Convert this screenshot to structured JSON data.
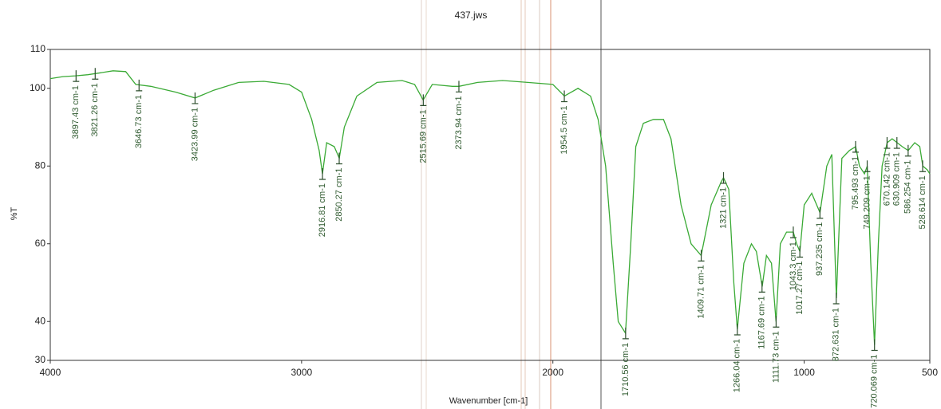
{
  "chart_data": {
    "type": "line",
    "title": "437.jws",
    "x_label": "Wavenumber [cm-1]",
    "y_label": "%T",
    "xlim": [
      4000,
      500
    ],
    "ylim": [
      30,
      110
    ],
    "xticks": [
      4000,
      3000,
      2000,
      1000,
      500
    ],
    "yticks": [
      30,
      40,
      60,
      80,
      100,
      110
    ],
    "series": [
      {
        "color": "#3aaa35",
        "x": [
          4000,
          3950,
          3900,
          3850,
          3800,
          3750,
          3700,
          3660,
          3600,
          3500,
          3424,
          3350,
          3250,
          3150,
          3050,
          3000,
          2960,
          2930,
          2917,
          2900,
          2870,
          2850,
          2830,
          2780,
          2700,
          2600,
          2550,
          2516,
          2480,
          2400,
          2374,
          2300,
          2200,
          2100,
          2000,
          1954,
          1900,
          1850,
          1820,
          1790,
          1760,
          1740,
          1711,
          1690,
          1670,
          1640,
          1600,
          1560,
          1530,
          1490,
          1450,
          1410,
          1370,
          1330,
          1321,
          1300,
          1280,
          1266,
          1240,
          1210,
          1190,
          1167,
          1150,
          1130,
          1112,
          1095,
          1070,
          1043,
          1030,
          1017,
          1000,
          970,
          937,
          910,
          890,
          872,
          850,
          820,
          795,
          780,
          760,
          749,
          735,
          720,
          705,
          690,
          670,
          650,
          630,
          610,
          586,
          560,
          540,
          528,
          510,
          500
        ],
        "values": [
          102.5,
          103,
          103.2,
          103.5,
          104,
          104.5,
          104.3,
          101,
          100.5,
          99,
          97.5,
          99.5,
          101.5,
          101.8,
          101,
          99,
          92,
          84,
          78,
          86,
          85,
          82,
          90,
          98,
          101.5,
          102,
          101,
          97,
          101,
          100.5,
          100.5,
          101.5,
          102,
          101.5,
          101,
          98,
          100,
          98,
          92,
          80,
          55,
          40,
          37,
          60,
          85,
          91,
          92,
          92,
          87,
          70,
          60,
          57,
          70,
          76,
          77,
          74,
          50,
          38,
          55,
          60,
          58,
          49,
          57,
          55,
          40,
          60,
          63,
          63,
          60,
          58,
          70,
          73,
          68,
          80,
          83,
          46,
          82,
          84,
          85,
          80,
          78,
          80,
          55,
          34,
          60,
          80,
          86,
          87,
          86,
          85,
          84,
          86,
          85,
          80,
          79,
          78
        ]
      }
    ],
    "peaks": [
      {
        "label": "3897.43 cm-1",
        "x": 3897.43,
        "y": 103.2
      },
      {
        "label": "3821.26 cm-1",
        "x": 3821.26,
        "y": 103.8
      },
      {
        "label": "3646.73 cm-1",
        "x": 3646.73,
        "y": 100.8
      },
      {
        "label": "3423.99 cm-1",
        "x": 3423.99,
        "y": 97.5
      },
      {
        "label": "2916.81 cm-1",
        "x": 2916.81,
        "y": 78
      },
      {
        "label": "2850.27 cm-1",
        "x": 2850.27,
        "y": 82
      },
      {
        "label": "2515.69 cm-1",
        "x": 2515.69,
        "y": 97
      },
      {
        "label": "2373.94 cm-1",
        "x": 2373.94,
        "y": 100.5
      },
      {
        "label": "1954.5 cm-1",
        "x": 1954.5,
        "y": 98
      },
      {
        "label": "1710.56 cm-1",
        "x": 1710.56,
        "y": 37
      },
      {
        "label": "1409.71 cm-1",
        "x": 1409.71,
        "y": 57
      },
      {
        "label": "1321 cm-1",
        "x": 1321,
        "y": 77
      },
      {
        "label": "1266.04 cm-1",
        "x": 1266.04,
        "y": 38
      },
      {
        "label": "1167.69 cm-1",
        "x": 1167.69,
        "y": 49
      },
      {
        "label": "1111.73 cm-1",
        "x": 1111.73,
        "y": 40
      },
      {
        "label": "1043.3 cm-1",
        "x": 1043.3,
        "y": 63
      },
      {
        "label": "1017.27 cm-1",
        "x": 1017.27,
        "y": 58
      },
      {
        "label": "937.235 cm-1",
        "x": 937.235,
        "y": 68
      },
      {
        "label": "872.631 cm-1",
        "x": 872.631,
        "y": 46
      },
      {
        "label": "795.493 cm-1",
        "x": 795.493,
        "y": 85
      },
      {
        "label": "749.209 cm-1",
        "x": 749.209,
        "y": 80
      },
      {
        "label": "720.069 cm-1",
        "x": 720.069,
        "y": 34
      },
      {
        "label": "670.142 cm-1",
        "x": 670.142,
        "y": 86
      },
      {
        "label": "630.909 cm-1",
        "x": 630.909,
        "y": 86
      },
      {
        "label": "586.254 cm-1",
        "x": 586.254,
        "y": 84
      },
      {
        "label": "528.614 cm-1",
        "x": 528.614,
        "y": 80
      }
    ]
  }
}
